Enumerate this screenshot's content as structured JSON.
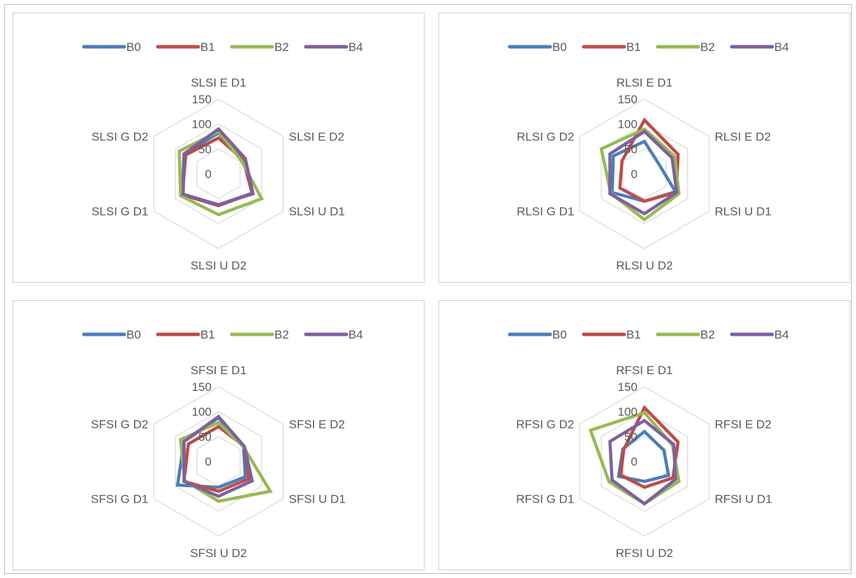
{
  "chart_data": [
    {
      "type": "radar",
      "axes": [
        "SLSI E D1",
        "SLSI E D2",
        "SLSI U D1",
        "SLSI U D2",
        "SLSI G D1",
        "SLSI G D2"
      ],
      "ticks": [
        "0",
        "50",
        "100",
        "150"
      ],
      "rlim": [
        0,
        150
      ],
      "legend_position": "top",
      "series": [
        {
          "name": "B0",
          "color": "#4a7ebb",
          "values": [
            82,
            57,
            78,
            62,
            84,
            80
          ]
        },
        {
          "name": "B1",
          "color": "#be4b48",
          "values": [
            72,
            57,
            78,
            64,
            84,
            76
          ]
        },
        {
          "name": "B2",
          "color": "#98b954",
          "values": [
            85,
            53,
            100,
            82,
            88,
            91
          ]
        },
        {
          "name": "B4",
          "color": "#7d60a0",
          "values": [
            90,
            62,
            80,
            62,
            82,
            80
          ]
        }
      ]
    },
    {
      "type": "radar",
      "axes": [
        "RLSI E D1",
        "RLSI E D2",
        "RLSI U D1",
        "RLSI U D2",
        "RLSI G D1",
        "RLSI G D2"
      ],
      "ticks": [
        "0",
        "50",
        "100",
        "150"
      ],
      "rlim": [
        0,
        150
      ],
      "legend_position": "top",
      "series": [
        {
          "name": "B0",
          "color": "#4a7ebb",
          "values": [
            65,
            35,
            72,
            55,
            75,
            72
          ]
        },
        {
          "name": "B1",
          "color": "#be4b48",
          "values": [
            108,
            78,
            74,
            55,
            57,
            52
          ]
        },
        {
          "name": "B2",
          "color": "#98b954",
          "values": [
            90,
            70,
            80,
            92,
            78,
            100
          ]
        },
        {
          "name": "B4",
          "color": "#7d60a0",
          "values": [
            85,
            64,
            75,
            80,
            80,
            80
          ]
        }
      ]
    },
    {
      "type": "radar",
      "axes": [
        "SFSI E D1",
        "SFSI E D2",
        "SFSI U D1",
        "SFSI U D2",
        "SFSI G D1",
        "SFSI G D2"
      ],
      "ticks": [
        "0",
        "50",
        "100",
        "150"
      ],
      "rlim": [
        0,
        150
      ],
      "legend_position": "top",
      "series": [
        {
          "name": "B0",
          "color": "#4a7ebb",
          "values": [
            88,
            58,
            62,
            52,
            95,
            80
          ]
        },
        {
          "name": "B1",
          "color": "#be4b48",
          "values": [
            70,
            60,
            70,
            60,
            80,
            70
          ]
        },
        {
          "name": "B2",
          "color": "#98b954",
          "values": [
            78,
            58,
            120,
            80,
            78,
            88
          ]
        },
        {
          "name": "B4",
          "color": "#7d60a0",
          "values": [
            90,
            60,
            78,
            70,
            80,
            80
          ]
        }
      ]
    },
    {
      "type": "radar",
      "axes": [
        "RFSI E D1",
        "RFSI E D2",
        "RFSI U D1",
        "RFSI U D2",
        "RFSI G D1",
        "RFSI G D2"
      ],
      "ticks": [
        "0",
        "50",
        "100",
        "150"
      ],
      "rlim": [
        0,
        150
      ],
      "legend_position": "top",
      "series": [
        {
          "name": "B0",
          "color": "#4a7ebb",
          "values": [
            60,
            45,
            56,
            40,
            60,
            50
          ]
        },
        {
          "name": "B1",
          "color": "#be4b48",
          "values": [
            108,
            78,
            66,
            52,
            55,
            48
          ]
        },
        {
          "name": "B2",
          "color": "#98b954",
          "values": [
            98,
            65,
            80,
            85,
            82,
            125
          ]
        },
        {
          "name": "B4",
          "color": "#7d60a0",
          "values": [
            82,
            68,
            72,
            85,
            75,
            80
          ]
        }
      ]
    }
  ]
}
